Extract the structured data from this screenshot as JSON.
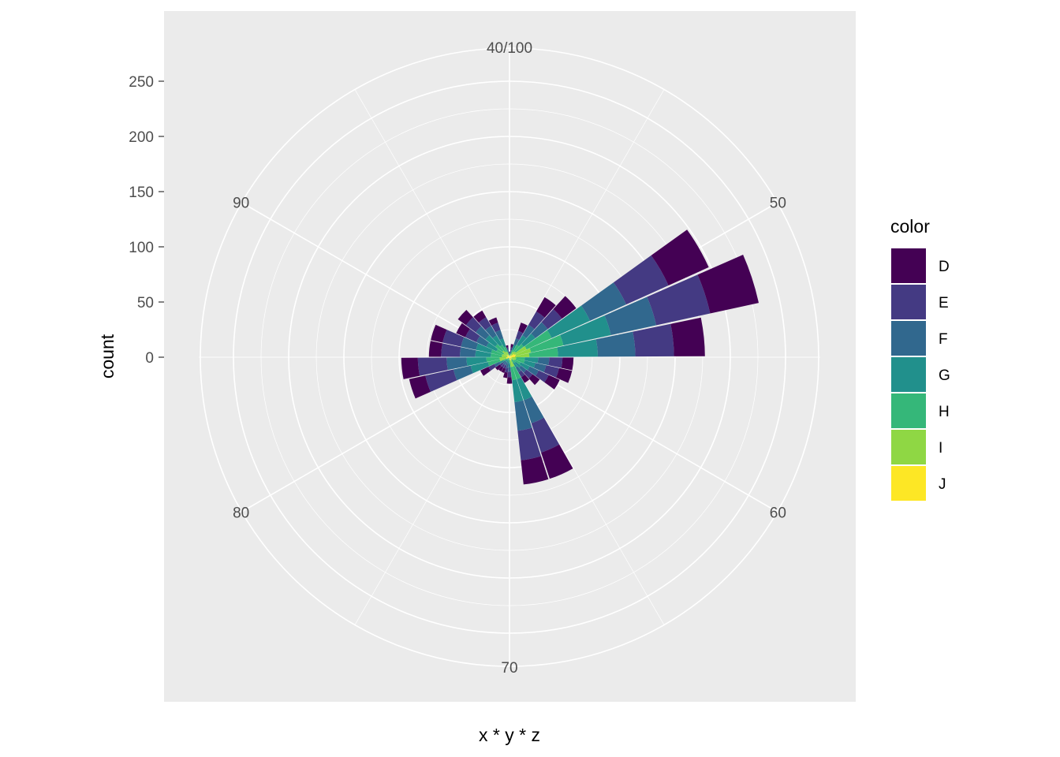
{
  "chart_data": {
    "type": "bar",
    "coord": "polar",
    "xlabel": "x * y * z",
    "ylabel": "count",
    "angle_ticks": [
      "40/100",
      "50",
      "60",
      "70",
      "80",
      "90"
    ],
    "y_ticks": [
      0,
      50,
      100,
      150,
      200,
      250
    ],
    "ylim": [
      -50,
      300
    ],
    "grid": true,
    "legend": {
      "title": "color",
      "position": "right"
    },
    "series": [
      {
        "name": "D",
        "color": "#440154"
      },
      {
        "name": "E",
        "color": "#443A83"
      },
      {
        "name": "F",
        "color": "#31688E"
      },
      {
        "name": "G",
        "color": "#21908C"
      },
      {
        "name": "H",
        "color": "#35B779"
      },
      {
        "name": "I",
        "color": "#8FD744"
      },
      {
        "name": "J",
        "color": "#FDE725"
      }
    ],
    "bins": [
      {
        "x": 40,
        "counts": [
          1,
          1,
          1,
          1,
          1,
          0,
          0
        ]
      },
      {
        "x": 42,
        "counts": [
          3,
          3,
          2,
          2,
          1,
          1,
          0
        ]
      },
      {
        "x": 44,
        "counts": [
          8,
          7,
          6,
          5,
          4,
          2,
          1
        ]
      },
      {
        "x": 46,
        "counts": [
          15,
          14,
          11,
          10,
          7,
          4,
          2
        ]
      },
      {
        "x": 48,
        "counts": [
          16,
          16,
          14,
          13,
          9,
          5,
          2
        ]
      },
      {
        "x": 50,
        "counts": [
          40,
          42,
          36,
          38,
          25,
          12,
          5
        ]
      },
      {
        "x": 52,
        "counts": [
          45,
          50,
          42,
          44,
          30,
          14,
          6
        ]
      },
      {
        "x": 54,
        "counts": [
          28,
          35,
          34,
          36,
          26,
          13,
          5
        ]
      },
      {
        "x": 56,
        "counts": [
          10,
          12,
          10,
          12,
          8,
          4,
          2
        ]
      },
      {
        "x": 58,
        "counts": [
          12,
          12,
          10,
          10,
          8,
          4,
          2
        ]
      },
      {
        "x": 60,
        "counts": [
          11,
          10,
          9,
          9,
          6,
          3,
          2
        ]
      },
      {
        "x": 62,
        "counts": [
          8,
          7,
          6,
          6,
          4,
          2,
          1
        ]
      },
      {
        "x": 64,
        "counts": [
          6,
          5,
          5,
          5,
          3,
          2,
          1
        ]
      },
      {
        "x": 66,
        "counts": [
          25,
          28,
          22,
          20,
          12,
          6,
          3
        ]
      },
      {
        "x": 68,
        "counts": [
          22,
          27,
          26,
          20,
          12,
          6,
          3
        ]
      },
      {
        "x": 70,
        "counts": [
          6,
          5,
          4,
          4,
          3,
          1,
          1
        ]
      },
      {
        "x": 72,
        "counts": [
          5,
          4,
          4,
          3,
          2,
          1,
          0
        ]
      },
      {
        "x": 74,
        "counts": [
          4,
          3,
          3,
          2,
          2,
          1,
          0
        ]
      },
      {
        "x": 76,
        "counts": [
          4,
          3,
          3,
          2,
          2,
          1,
          0
        ]
      },
      {
        "x": 78,
        "counts": [
          5,
          3,
          3,
          2,
          2,
          1,
          0
        ]
      },
      {
        "x": 80,
        "counts": [
          8,
          6,
          5,
          4,
          3,
          2,
          1
        ]
      },
      {
        "x": 82,
        "counts": [
          15,
          26,
          16,
          16,
          11,
          6,
          3
        ]
      },
      {
        "x": 84,
        "counts": [
          15,
          26,
          18,
          18,
          12,
          6,
          3
        ]
      },
      {
        "x": 86,
        "counts": [
          11,
          17,
          14,
          14,
          10,
          5,
          2
        ]
      },
      {
        "x": 88,
        "counts": [
          11,
          17,
          14,
          14,
          10,
          5,
          2
        ]
      },
      {
        "x": 90,
        "counts": [
          9,
          11,
          10,
          10,
          7,
          4,
          2
        ]
      },
      {
        "x": 92,
        "counts": [
          9,
          11,
          11,
          11,
          8,
          5,
          3
        ]
      },
      {
        "x": 94,
        "counts": [
          7,
          9,
          10,
          10,
          7,
          4,
          2
        ]
      },
      {
        "x": 96,
        "counts": [
          5,
          7,
          8,
          8,
          5,
          3,
          2
        ]
      },
      {
        "x": 98,
        "counts": [
          2,
          2,
          2,
          2,
          1,
          1,
          1
        ]
      }
    ]
  }
}
